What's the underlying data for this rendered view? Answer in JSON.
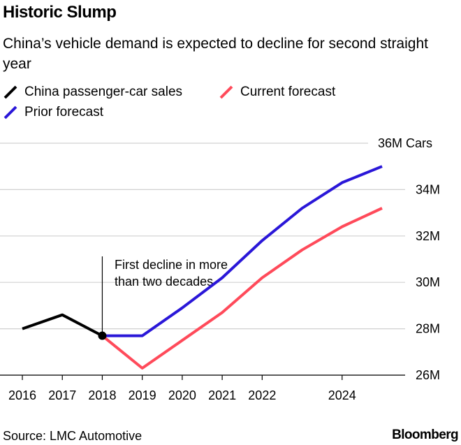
{
  "title": "Historic Slump",
  "subtitle": "China’s vehicle demand is expected to decline for second straight year",
  "source": "Source: LMC Automotive",
  "brand": "Bloomberg",
  "legend": [
    {
      "label": "China passenger-car sales",
      "color": "#000000"
    },
    {
      "label": "Current forecast",
      "color": "#ff4a5a"
    },
    {
      "label": "Prior forecast",
      "color": "#2a17d8"
    }
  ],
  "annotation": {
    "lines": [
      "First decline in more",
      "than two decades"
    ],
    "x": 2018
  },
  "chart_data": {
    "type": "line",
    "title": "Historic Slump",
    "ylim": [
      26,
      36
    ],
    "y_ticks": [
      26,
      28,
      30,
      32,
      34,
      36
    ],
    "y_tick_labels": [
      "26M",
      "28M",
      "30M",
      "32M",
      "34M",
      "36M Cars"
    ],
    "x_ticks": [
      2016,
      2017,
      2018,
      2019,
      2020,
      2021,
      2022,
      2024
    ],
    "x_tick_labels": [
      "2016",
      "2017",
      "2018",
      "2019",
      "2020",
      "2021",
      "2022",
      "2024"
    ],
    "grid": true,
    "legend_position": "top-left",
    "series": [
      {
        "name": "China passenger-car sales",
        "color": "#000000",
        "x": [
          2016,
          2017,
          2018
        ],
        "values": [
          28.0,
          28.6,
          27.7
        ]
      },
      {
        "name": "Current forecast",
        "color": "#ff4a5a",
        "x": [
          2018,
          2019,
          2020,
          2021,
          2022,
          2023,
          2024,
          2025
        ],
        "values": [
          27.7,
          26.3,
          27.5,
          28.7,
          30.2,
          31.4,
          32.4,
          33.2
        ]
      },
      {
        "name": "Prior forecast",
        "color": "#2a17d8",
        "x": [
          2018,
          2019,
          2020,
          2021,
          2022,
          2023,
          2024,
          2025
        ],
        "values": [
          27.7,
          27.7,
          28.9,
          30.2,
          31.8,
          33.2,
          34.3,
          35.0
        ]
      }
    ]
  }
}
